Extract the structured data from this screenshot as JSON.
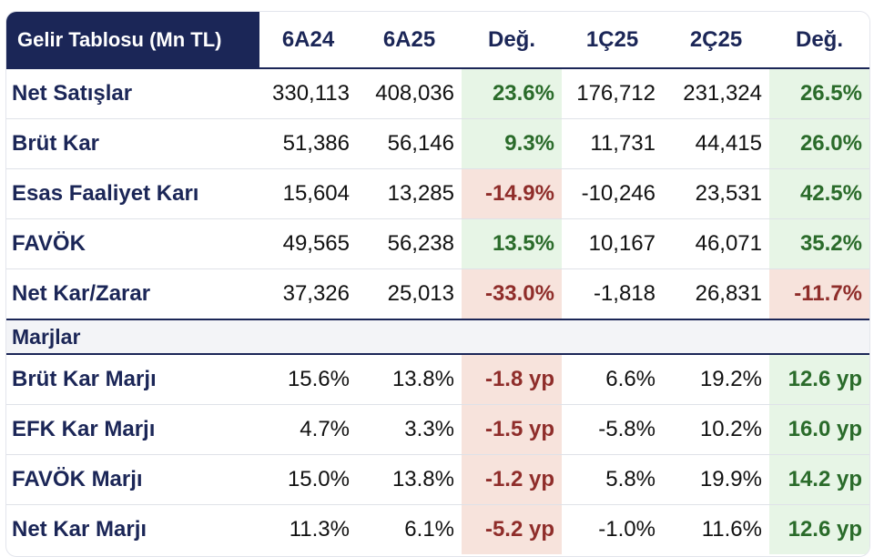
{
  "table": {
    "headers": [
      "Gelir Tablosu (Mn TL)",
      "6A24",
      "6A25",
      "Değ.",
      "1Ç25",
      "2Ç25",
      "Değ."
    ],
    "rows": [
      {
        "label": "Net Satışlar",
        "v": [
          "330,113",
          "408,036",
          "23.6%",
          "176,712",
          "231,324",
          "26.5%"
        ],
        "ch": [
          "pos",
          "pos"
        ]
      },
      {
        "label": "Brüt Kar",
        "v": [
          "51,386",
          "56,146",
          "9.3%",
          "11,731",
          "44,415",
          "26.0%"
        ],
        "ch": [
          "pos",
          "pos"
        ]
      },
      {
        "label": "Esas Faaliyet Karı",
        "v": [
          "15,604",
          "13,285",
          "-14.9%",
          "-10,246",
          "23,531",
          "42.5%"
        ],
        "ch": [
          "neg",
          "pos"
        ]
      },
      {
        "label": "FAVÖK",
        "v": [
          "49,565",
          "56,238",
          "13.5%",
          "10,167",
          "46,071",
          "35.2%"
        ],
        "ch": [
          "pos",
          "pos"
        ]
      },
      {
        "label": "Net Kar/Zarar",
        "v": [
          "37,326",
          "25,013",
          "-33.0%",
          "-1,818",
          "26,831",
          "-11.7%"
        ],
        "ch": [
          "neg",
          "neg"
        ]
      }
    ],
    "section_label": "Marjlar",
    "margin_rows": [
      {
        "label": "Brüt Kar Marjı",
        "v": [
          "15.6%",
          "13.8%",
          "-1.8 yp",
          "6.6%",
          "19.2%",
          "12.6 yp"
        ],
        "ch": [
          "neg",
          "pos"
        ]
      },
      {
        "label": "EFK Kar Marjı",
        "v": [
          "4.7%",
          "3.3%",
          "-1.5 yp",
          "-5.8%",
          "10.2%",
          "16.0 yp"
        ],
        "ch": [
          "neg",
          "pos"
        ]
      },
      {
        "label": "FAVÖK Marjı",
        "v": [
          "15.0%",
          "13.8%",
          "-1.2 yp",
          "5.8%",
          "19.9%",
          "14.2 yp"
        ],
        "ch": [
          "neg",
          "pos"
        ]
      },
      {
        "label": "Net Kar Marjı",
        "v": [
          "11.3%",
          "6.1%",
          "-5.2 yp",
          "-1.0%",
          "11.6%",
          "12.6 yp"
        ],
        "ch": [
          "neg",
          "pos"
        ]
      }
    ],
    "colors": {
      "header_bg": "#1b2657",
      "positive_bg": "#e7f5e6",
      "negative_bg": "#f7e3dc"
    }
  }
}
